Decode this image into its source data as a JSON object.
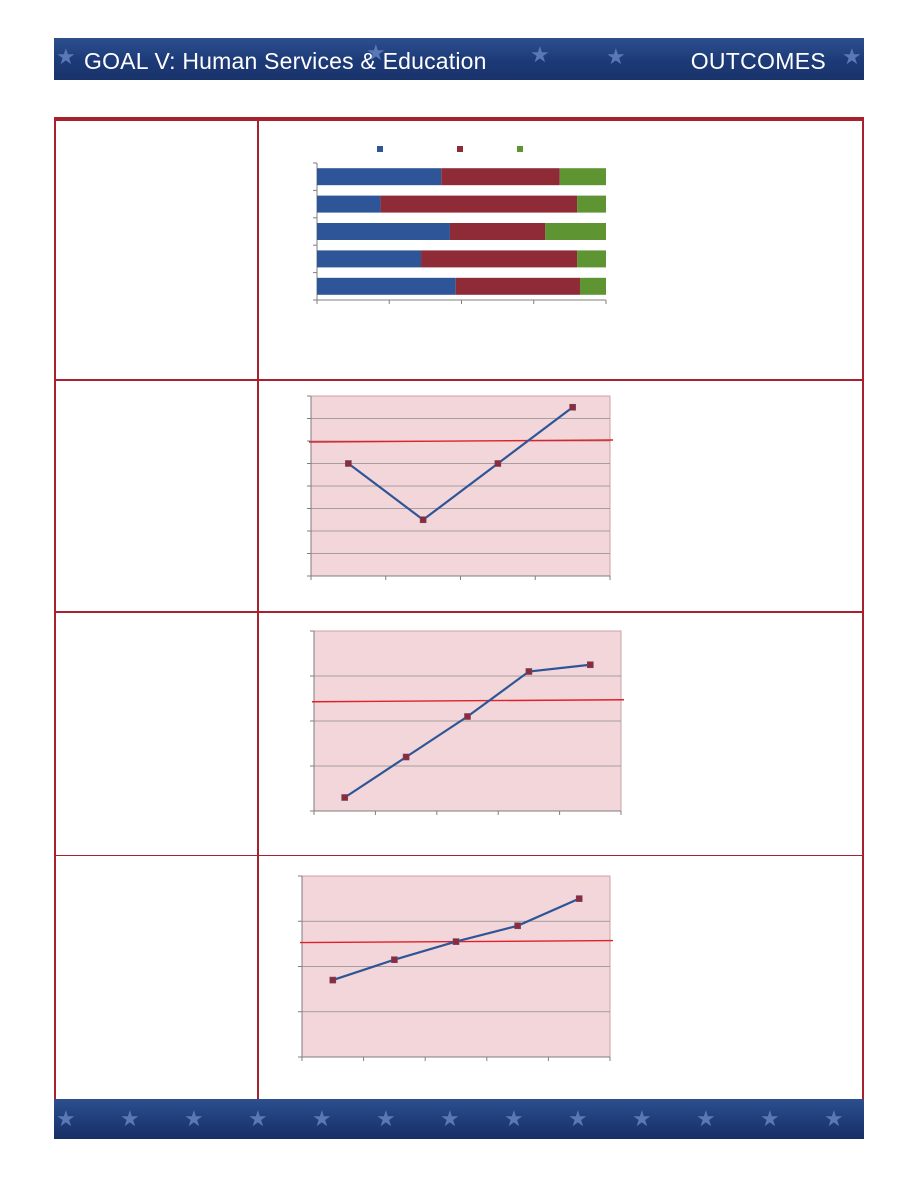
{
  "header": {
    "title": "GOAL V: Human Services & Education",
    "section": "OUTCOMES"
  },
  "colors": {
    "banner": "#1f3c7c",
    "frame": "#a8222d",
    "series_blue": "#2e5597",
    "series_red": "#8e2b36",
    "series_green": "#5e9432",
    "plot_fill": "#f2d6d9",
    "target_line": "#e0202a"
  },
  "chart_data": [
    {
      "type": "bar",
      "orientation": "horizontal",
      "stacked": true,
      "normalized": true,
      "categories": [
        "",
        "",
        "",
        "",
        ""
      ],
      "series": [
        {
          "color": "#2e5597",
          "values": [
            0.43,
            0.22,
            0.46,
            0.36,
            0.48
          ]
        },
        {
          "color": "#8e2b36",
          "values": [
            0.41,
            0.68,
            0.33,
            0.54,
            0.43
          ]
        },
        {
          "color": "#5e9432",
          "values": [
            0.16,
            0.1,
            0.21,
            0.1,
            0.09
          ]
        }
      ],
      "xlim": [
        0,
        1
      ],
      "legend": "top"
    },
    {
      "type": "line",
      "x": [
        1,
        2,
        3,
        4
      ],
      "values": [
        5,
        2.5,
        5,
        7.5
      ],
      "ylim": [
        0,
        8
      ],
      "target": 6,
      "grid": true
    },
    {
      "type": "line",
      "x": [
        1,
        2,
        3,
        4,
        5
      ],
      "values": [
        0.3,
        1.2,
        2.1,
        3.1,
        3.25
      ],
      "ylim": [
        0,
        4
      ],
      "target": 2.45,
      "grid": true
    },
    {
      "type": "line",
      "x": [
        1,
        2,
        3,
        4,
        5
      ],
      "values": [
        1.7,
        2.15,
        2.55,
        2.9,
        3.5
      ],
      "ylim": [
        0,
        4
      ],
      "target": 2.55,
      "grid": true
    }
  ]
}
